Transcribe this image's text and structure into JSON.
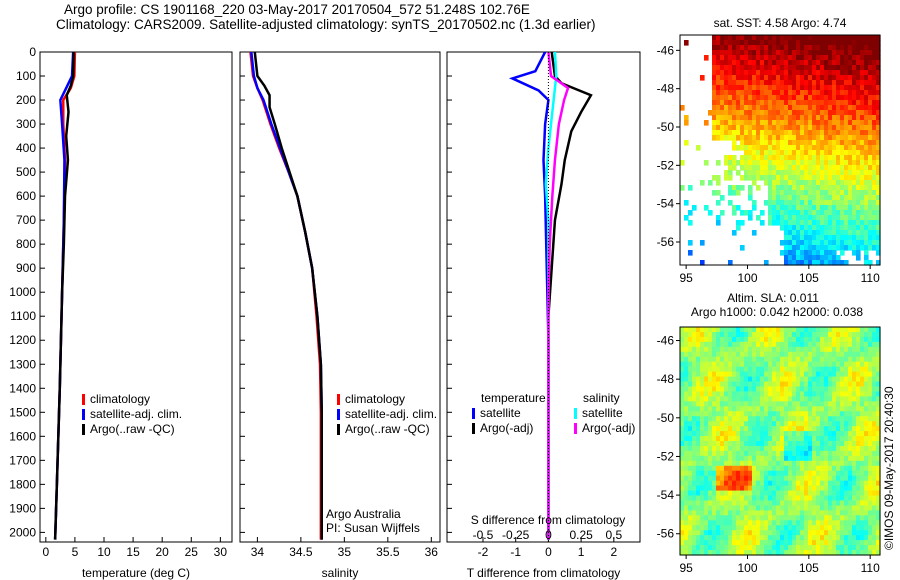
{
  "title_line1": "Argo profile: CS 1901168_220 03-May-2017 20170504_572 51.248S 102.76E",
  "title_line2": "Climatology: CARS2009. Satellite-adjusted climatology: synTS_20170502.nc (1.3d earlier)",
  "side_label": "©IMOS 09-May-2017 20:40:30",
  "colors": {
    "clim": "#ff0000",
    "sat": "#0000ff",
    "argo": "#000000",
    "sat_s": "#00ffff",
    "argo_s": "#ff00ff"
  },
  "chart_data": [
    {
      "type": "line",
      "id": "temperature",
      "xlabel": "temperature (deg C)",
      "xlim": [
        -1,
        32
      ],
      "ylim": [
        2040,
        0
      ],
      "xticks": [
        0,
        5,
        10,
        15,
        20,
        25,
        30
      ],
      "yticks": [
        0,
        100,
        200,
        300,
        400,
        500,
        600,
        700,
        800,
        900,
        1000,
        1100,
        1200,
        1300,
        1400,
        1500,
        1600,
        1700,
        1800,
        1900,
        2000
      ],
      "legend": [
        "climatology",
        "satellite-adj. clim.",
        "Argo(..raw -QC)"
      ],
      "legend_pos": "center",
      "series": [
        {
          "name": "climatology",
          "color": "#ff0000",
          "points": [
            [
              5,
              0
            ],
            [
              4.9,
              100
            ],
            [
              4.3,
              150
            ],
            [
              3,
              200
            ],
            [
              3,
              300
            ],
            [
              3.3,
              450
            ],
            [
              3.1,
              700
            ],
            [
              2.8,
              1000
            ],
            [
              2.4,
              1400
            ],
            [
              1.9,
              1800
            ],
            [
              1.6,
              2030
            ]
          ]
        },
        {
          "name": "satellite-adj. clim.",
          "color": "#0000ff",
          "points": [
            [
              4.7,
              0
            ],
            [
              4.5,
              100
            ],
            [
              3.5,
              150
            ],
            [
              2.5,
              200
            ],
            [
              2.8,
              300
            ],
            [
              3.2,
              450
            ],
            [
              3.1,
              700
            ],
            [
              2.8,
              1000
            ],
            [
              2.4,
              1400
            ],
            [
              1.9,
              1800
            ],
            [
              1.6,
              2030
            ]
          ]
        },
        {
          "name": "Argo(..raw -QC)",
          "color": "#000000",
          "points": [
            [
              4.8,
              0
            ],
            [
              4.7,
              100
            ],
            [
              4.3,
              140
            ],
            [
              3.6,
              180
            ],
            [
              3.9,
              250
            ],
            [
              3.5,
              350
            ],
            [
              3.8,
              450
            ],
            [
              3.3,
              600
            ],
            [
              3.1,
              800
            ],
            [
              2.8,
              1000
            ],
            [
              2.4,
              1400
            ],
            [
              1.9,
              1800
            ],
            [
              1.6,
              2030
            ]
          ]
        }
      ]
    },
    {
      "type": "line",
      "id": "salinity",
      "xlabel": "salinity",
      "xlim": [
        33.8,
        36.1
      ],
      "ylim": [
        2040,
        0
      ],
      "xticks": [
        34,
        34.5,
        35,
        35.5,
        36
      ],
      "legend": [
        "climatology",
        "satellite-adj. clim.",
        "Argo(..raw -QC)"
      ],
      "legend_pos": "center",
      "annotation": [
        "Argo Australia",
        "PI: Susan Wijffels"
      ],
      "series": [
        {
          "name": "climatology",
          "color": "#ff0000",
          "points": [
            [
              33.92,
              0
            ],
            [
              33.95,
              100
            ],
            [
              34.0,
              150
            ],
            [
              34.06,
              200
            ],
            [
              34.15,
              300
            ],
            [
              34.25,
              400
            ],
            [
              34.36,
              500
            ],
            [
              34.46,
              600
            ],
            [
              34.55,
              750
            ],
            [
              34.63,
              900
            ],
            [
              34.68,
              1100
            ],
            [
              34.72,
              1300
            ],
            [
              34.73,
              1500
            ],
            [
              34.73,
              2030
            ]
          ]
        },
        {
          "name": "satellite-adj. clim.",
          "color": "#0000ff",
          "points": [
            [
              33.93,
              0
            ],
            [
              33.96,
              100
            ],
            [
              34.0,
              150
            ],
            [
              34.07,
              200
            ],
            [
              34.16,
              300
            ],
            [
              34.26,
              400
            ],
            [
              34.36,
              500
            ],
            [
              34.46,
              600
            ],
            [
              34.55,
              750
            ],
            [
              34.63,
              900
            ],
            [
              34.69,
              1100
            ],
            [
              34.73,
              1300
            ],
            [
              34.74,
              1500
            ],
            [
              34.74,
              2030
            ]
          ]
        },
        {
          "name": "Argo(..raw -QC)",
          "color": "#000000",
          "points": [
            [
              33.97,
              0
            ],
            [
              34.0,
              100
            ],
            [
              34.08,
              140
            ],
            [
              34.14,
              180
            ],
            [
              34.14,
              230
            ],
            [
              34.2,
              300
            ],
            [
              34.28,
              400
            ],
            [
              34.37,
              500
            ],
            [
              34.46,
              600
            ],
            [
              34.55,
              750
            ],
            [
              34.63,
              900
            ],
            [
              34.69,
              1100
            ],
            [
              34.73,
              1300
            ],
            [
              34.74,
              1500
            ],
            [
              34.74,
              2030
            ]
          ]
        }
      ]
    },
    {
      "type": "line",
      "id": "difference",
      "xlabel": "T difference from climatology",
      "x2label": "S difference from climatology",
      "xlim": [
        -3.1,
        2.8
      ],
      "xticks": [
        -2,
        -1,
        0,
        1,
        2
      ],
      "x2ticks": [
        -0.5,
        -0.25,
        0,
        0.25,
        0.5
      ],
      "x2_scale": 4,
      "ylim": [
        2040,
        0
      ],
      "legend_t": {
        "title": "temperature",
        "items": [
          "satellite",
          "Argo(-adj)"
        ]
      },
      "legend_s": {
        "title": "salinity",
        "items": [
          "satellite",
          "Argo(-adj)"
        ]
      },
      "series": [
        {
          "name": "temperature satellite",
          "color": "#0000ff",
          "axis": "T",
          "points": [
            [
              -0.1,
              0
            ],
            [
              -0.4,
              80
            ],
            [
              -1.1,
              110
            ],
            [
              -0.3,
              160
            ],
            [
              0,
              200
            ],
            [
              -0.1,
              300
            ],
            [
              -0.15,
              450
            ],
            [
              -0.1,
              600
            ],
            [
              -0.05,
              900
            ],
            [
              0,
              1200
            ],
            [
              0,
              2030
            ]
          ]
        },
        {
          "name": "temperature Argo(-adj)",
          "color": "#000000",
          "axis": "T",
          "points": [
            [
              0.1,
              0
            ],
            [
              0.2,
              100
            ],
            [
              0.4,
              130
            ],
            [
              1.3,
              180
            ],
            [
              1.0,
              250
            ],
            [
              0.7,
              330
            ],
            [
              0.5,
              450
            ],
            [
              0.4,
              550
            ],
            [
              0.2,
              700
            ],
            [
              0.1,
              900
            ],
            [
              0,
              1100
            ],
            [
              0,
              2030
            ]
          ]
        },
        {
          "name": "salinity satellite",
          "color": "#00ffff",
          "axis": "S",
          "points": [
            [
              0.05,
              0
            ],
            [
              0.06,
              100
            ],
            [
              0.05,
              150
            ],
            [
              0.03,
              250
            ],
            [
              0,
              400
            ],
            [
              -0.02,
              550
            ],
            [
              0,
              700
            ],
            [
              0,
              2030
            ]
          ]
        },
        {
          "name": "salinity Argo(-adj)",
          "color": "#ff00ff",
          "axis": "S",
          "points": [
            [
              0,
              0
            ],
            [
              0.02,
              100
            ],
            [
              0.15,
              150
            ],
            [
              0.12,
              200
            ],
            [
              0.08,
              300
            ],
            [
              0.05,
              450
            ],
            [
              0.03,
              600
            ],
            [
              0.01,
              800
            ],
            [
              0,
              1000
            ],
            [
              0,
              2030
            ]
          ]
        }
      ]
    },
    {
      "type": "heatmap",
      "id": "sst_map",
      "title": "sat. SST: 4.58 Argo: 4.74",
      "xlim": [
        94.5,
        110.8
      ],
      "ylim": [
        -57.2,
        -45.2
      ],
      "xticks": [
        95,
        100,
        105,
        110
      ],
      "yticks": [
        -46,
        -48,
        -50,
        -52,
        -54,
        -56
      ]
    },
    {
      "type": "heatmap",
      "id": "sla_map",
      "title_line1": "Altim. SLA: 0.011",
      "title_line2": "Argo h1000: 0.042 h2000: 0.038",
      "xlim": [
        94.5,
        110.8
      ],
      "ylim": [
        -57.1,
        -45.3
      ],
      "xticks": [
        95,
        100,
        105,
        110
      ],
      "yticks": [
        -46,
        -48,
        -50,
        -52,
        -54,
        -56
      ]
    }
  ]
}
